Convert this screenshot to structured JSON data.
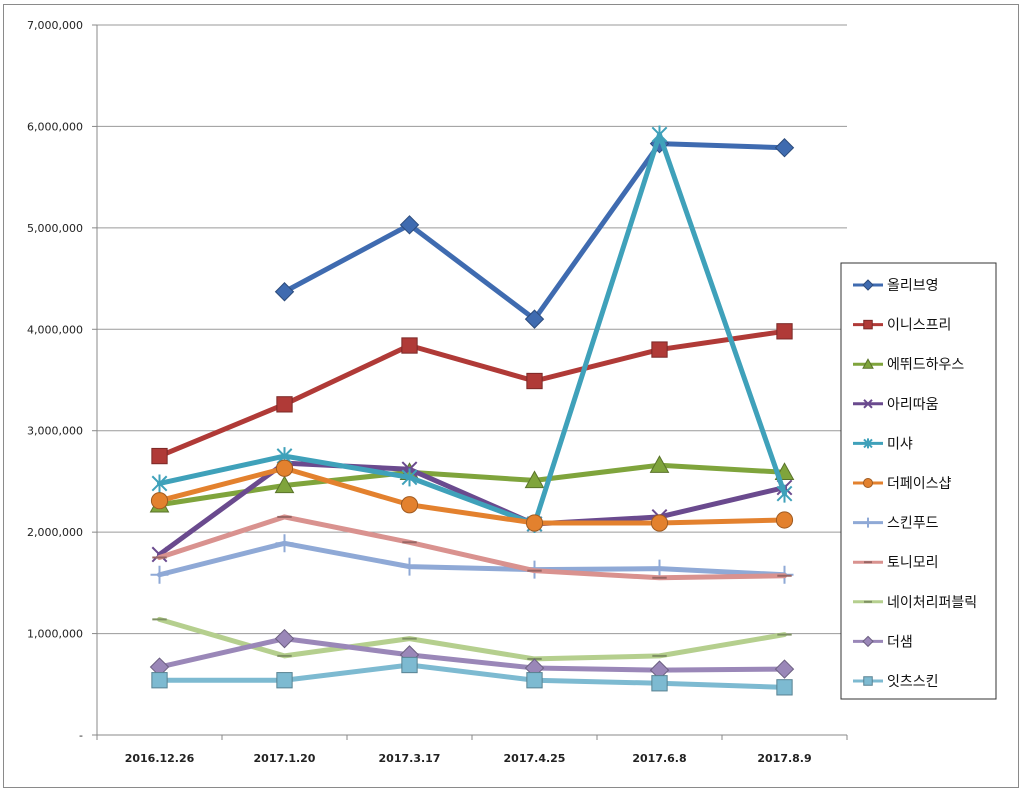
{
  "chart_data": {
    "type": "line",
    "categories": [
      "2016.12.26",
      "2017.1.20",
      "2017.3.17",
      "2017.4.25",
      "2017.6.8",
      "2017.8.9"
    ],
    "ylim": [
      0,
      7000000
    ],
    "y_ticks": [
      "-",
      "1,000,000",
      "2,000,000",
      "3,000,000",
      "4,000,000",
      "5,000,000",
      "6,000,000",
      "7,000,000"
    ],
    "grid": true,
    "legend_position": "right",
    "series": [
      {
        "name": "올리브영",
        "color": "#3F6BB0",
        "marker": "diamond",
        "values": [
          null,
          4370000,
          5030000,
          4100000,
          5830000,
          5790000
        ]
      },
      {
        "name": "이니스프리",
        "color": "#B03A37",
        "marker": "square",
        "values": [
          2750000,
          3260000,
          3840000,
          3490000,
          3800000,
          3980000
        ]
      },
      {
        "name": "에뛰드하우스",
        "color": "#7FA43C",
        "marker": "triangle",
        "values": [
          2270000,
          2460000,
          2590000,
          2510000,
          2660000,
          2590000
        ]
      },
      {
        "name": "아리따움",
        "color": "#6A4A8E",
        "marker": "x",
        "values": [
          1780000,
          2680000,
          2620000,
          2080000,
          2150000,
          2440000
        ]
      },
      {
        "name": "미샤",
        "color": "#3FA1BA",
        "marker": "star",
        "values": [
          2480000,
          2750000,
          2540000,
          2080000,
          5920000,
          2380000
        ]
      },
      {
        "name": "더페이스샵",
        "color": "#E3812E",
        "marker": "circle",
        "values": [
          2310000,
          2630000,
          2270000,
          2090000,
          2090000,
          2120000
        ]
      },
      {
        "name": "스킨푸드",
        "color": "#8FA9D6",
        "marker": "plus",
        "values": [
          1580000,
          1890000,
          1660000,
          1630000,
          1640000,
          1580000
        ]
      },
      {
        "name": "토니모리",
        "color": "#D9928F",
        "marker": "dash",
        "values": [
          1750000,
          2150000,
          1900000,
          1620000,
          1550000,
          1570000
        ]
      },
      {
        "name": "네이처리퍼블릭",
        "color": "#B5CF8E",
        "marker": "dash",
        "values": [
          1140000,
          780000,
          950000,
          750000,
          780000,
          990000
        ]
      },
      {
        "name": "더샘",
        "color": "#9A87B8",
        "marker": "diamond",
        "values": [
          670000,
          950000,
          790000,
          660000,
          640000,
          650000
        ]
      },
      {
        "name": "잇츠스킨",
        "color": "#7DBAD1",
        "marker": "square",
        "values": [
          540000,
          540000,
          690000,
          540000,
          510000,
          470000
        ]
      }
    ]
  }
}
